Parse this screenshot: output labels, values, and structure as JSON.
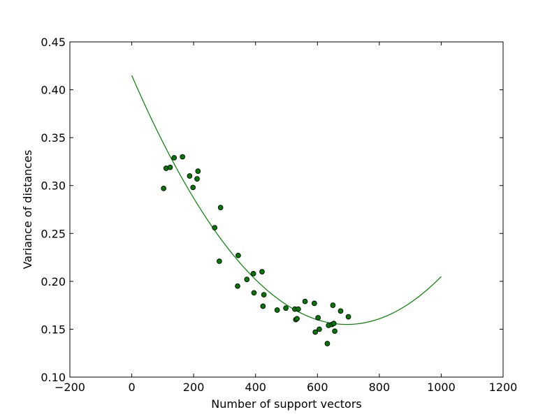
{
  "chart_data": {
    "type": "scatter",
    "title": "",
    "xlabel": "Number of support vectors",
    "ylabel": "Variance of distances",
    "xlim": [
      -200,
      1200
    ],
    "ylim": [
      0.1,
      0.45
    ],
    "xticks": [
      -200,
      0,
      200,
      400,
      600,
      800,
      1000,
      1200
    ],
    "xtick_labels": [
      "−200",
      "0",
      "200",
      "400",
      "600",
      "800",
      "1000",
      "1200"
    ],
    "yticks": [
      0.1,
      0.15,
      0.2,
      0.25,
      0.3,
      0.35,
      0.4,
      0.45
    ],
    "ytick_labels": [
      "0.10",
      "0.15",
      "0.20",
      "0.25",
      "0.30",
      "0.35",
      "0.40",
      "0.45"
    ],
    "grid": false,
    "legend": "none",
    "series": [
      {
        "type": "scatter",
        "color": "#007a00",
        "points": [
          [
            103,
            0.297
          ],
          [
            111,
            0.318
          ],
          [
            124,
            0.319
          ],
          [
            137,
            0.329
          ],
          [
            164,
            0.33
          ],
          [
            187,
            0.31
          ],
          [
            198,
            0.298
          ],
          [
            211,
            0.307
          ],
          [
            214,
            0.315
          ],
          [
            268,
            0.256
          ],
          [
            283,
            0.221
          ],
          [
            287,
            0.277
          ],
          [
            342,
            0.195
          ],
          [
            344,
            0.227
          ],
          [
            372,
            0.202
          ],
          [
            393,
            0.208
          ],
          [
            395,
            0.188
          ],
          [
            421,
            0.21
          ],
          [
            424,
            0.174
          ],
          [
            427,
            0.186
          ],
          [
            470,
            0.17
          ],
          [
            498,
            0.172
          ],
          [
            527,
            0.171
          ],
          [
            530,
            0.16
          ],
          [
            534,
            0.161
          ],
          [
            538,
            0.171
          ],
          [
            560,
            0.179
          ],
          [
            590,
            0.177
          ],
          [
            593,
            0.147
          ],
          [
            602,
            0.162
          ],
          [
            606,
            0.15
          ],
          [
            632,
            0.135
          ],
          [
            636,
            0.154
          ],
          [
            647,
            0.155
          ],
          [
            650,
            0.175
          ],
          [
            653,
            0.156
          ],
          [
            656,
            0.148
          ],
          [
            675,
            0.169
          ],
          [
            700,
            0.163
          ]
        ]
      },
      {
        "type": "line",
        "color": "#008000",
        "x_range": [
          0,
          1000
        ],
        "fit_points": [
          [
            0,
            0.415
          ],
          [
            700,
            0.155
          ],
          [
            1000,
            0.205
          ]
        ]
      }
    ]
  }
}
